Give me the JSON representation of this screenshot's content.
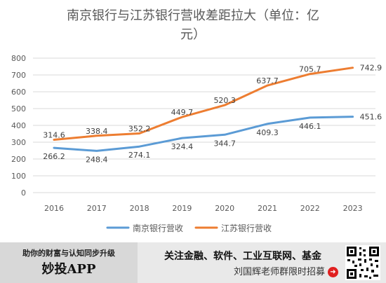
{
  "chart_data": {
    "type": "line",
    "title": "南京银行与江苏银行营收差距拉大（单位：亿元）",
    "title_lines": [
      "南京银行与江苏银行营收差距拉大（单位：亿",
      "元）"
    ],
    "categories": [
      "2016",
      "2017",
      "2018",
      "2019",
      "2020",
      "2021",
      "2022",
      "2023"
    ],
    "series": [
      {
        "name": "南京银行营收",
        "color": "#5b9bd5",
        "values": [
          266.2,
          248.4,
          274.1,
          324.4,
          344.7,
          409.3,
          446.1,
          451.6
        ],
        "labels": [
          "266.2",
          "248.4",
          "274.1",
          "324.4",
          "344.7",
          "409.3",
          "446.1",
          "451.6"
        ]
      },
      {
        "name": "江苏银行营收",
        "color": "#ed7d31",
        "values": [
          314.6,
          338.4,
          352.2,
          449.7,
          520.3,
          637.7,
          705.7,
          742.9
        ],
        "labels": [
          "314.6",
          "338.4",
          "352.2",
          "449.7",
          "520.3",
          "637.7",
          "705.7",
          "742.9"
        ]
      }
    ],
    "ylim": [
      0,
      800
    ],
    "yticks": [
      "0",
      "100",
      "200",
      "300",
      "400",
      "500",
      "600",
      "700",
      "800"
    ],
    "grid": true,
    "legend_position": "bottom"
  },
  "footer": {
    "tagline": "助你的财富与认知同步升级",
    "brand": "妙投APP",
    "promo_line1": "关注金融、软件、工业互联网、基金",
    "promo_line2": "刘国辉老师群限时招募",
    "arrow_glyph": "➜"
  }
}
